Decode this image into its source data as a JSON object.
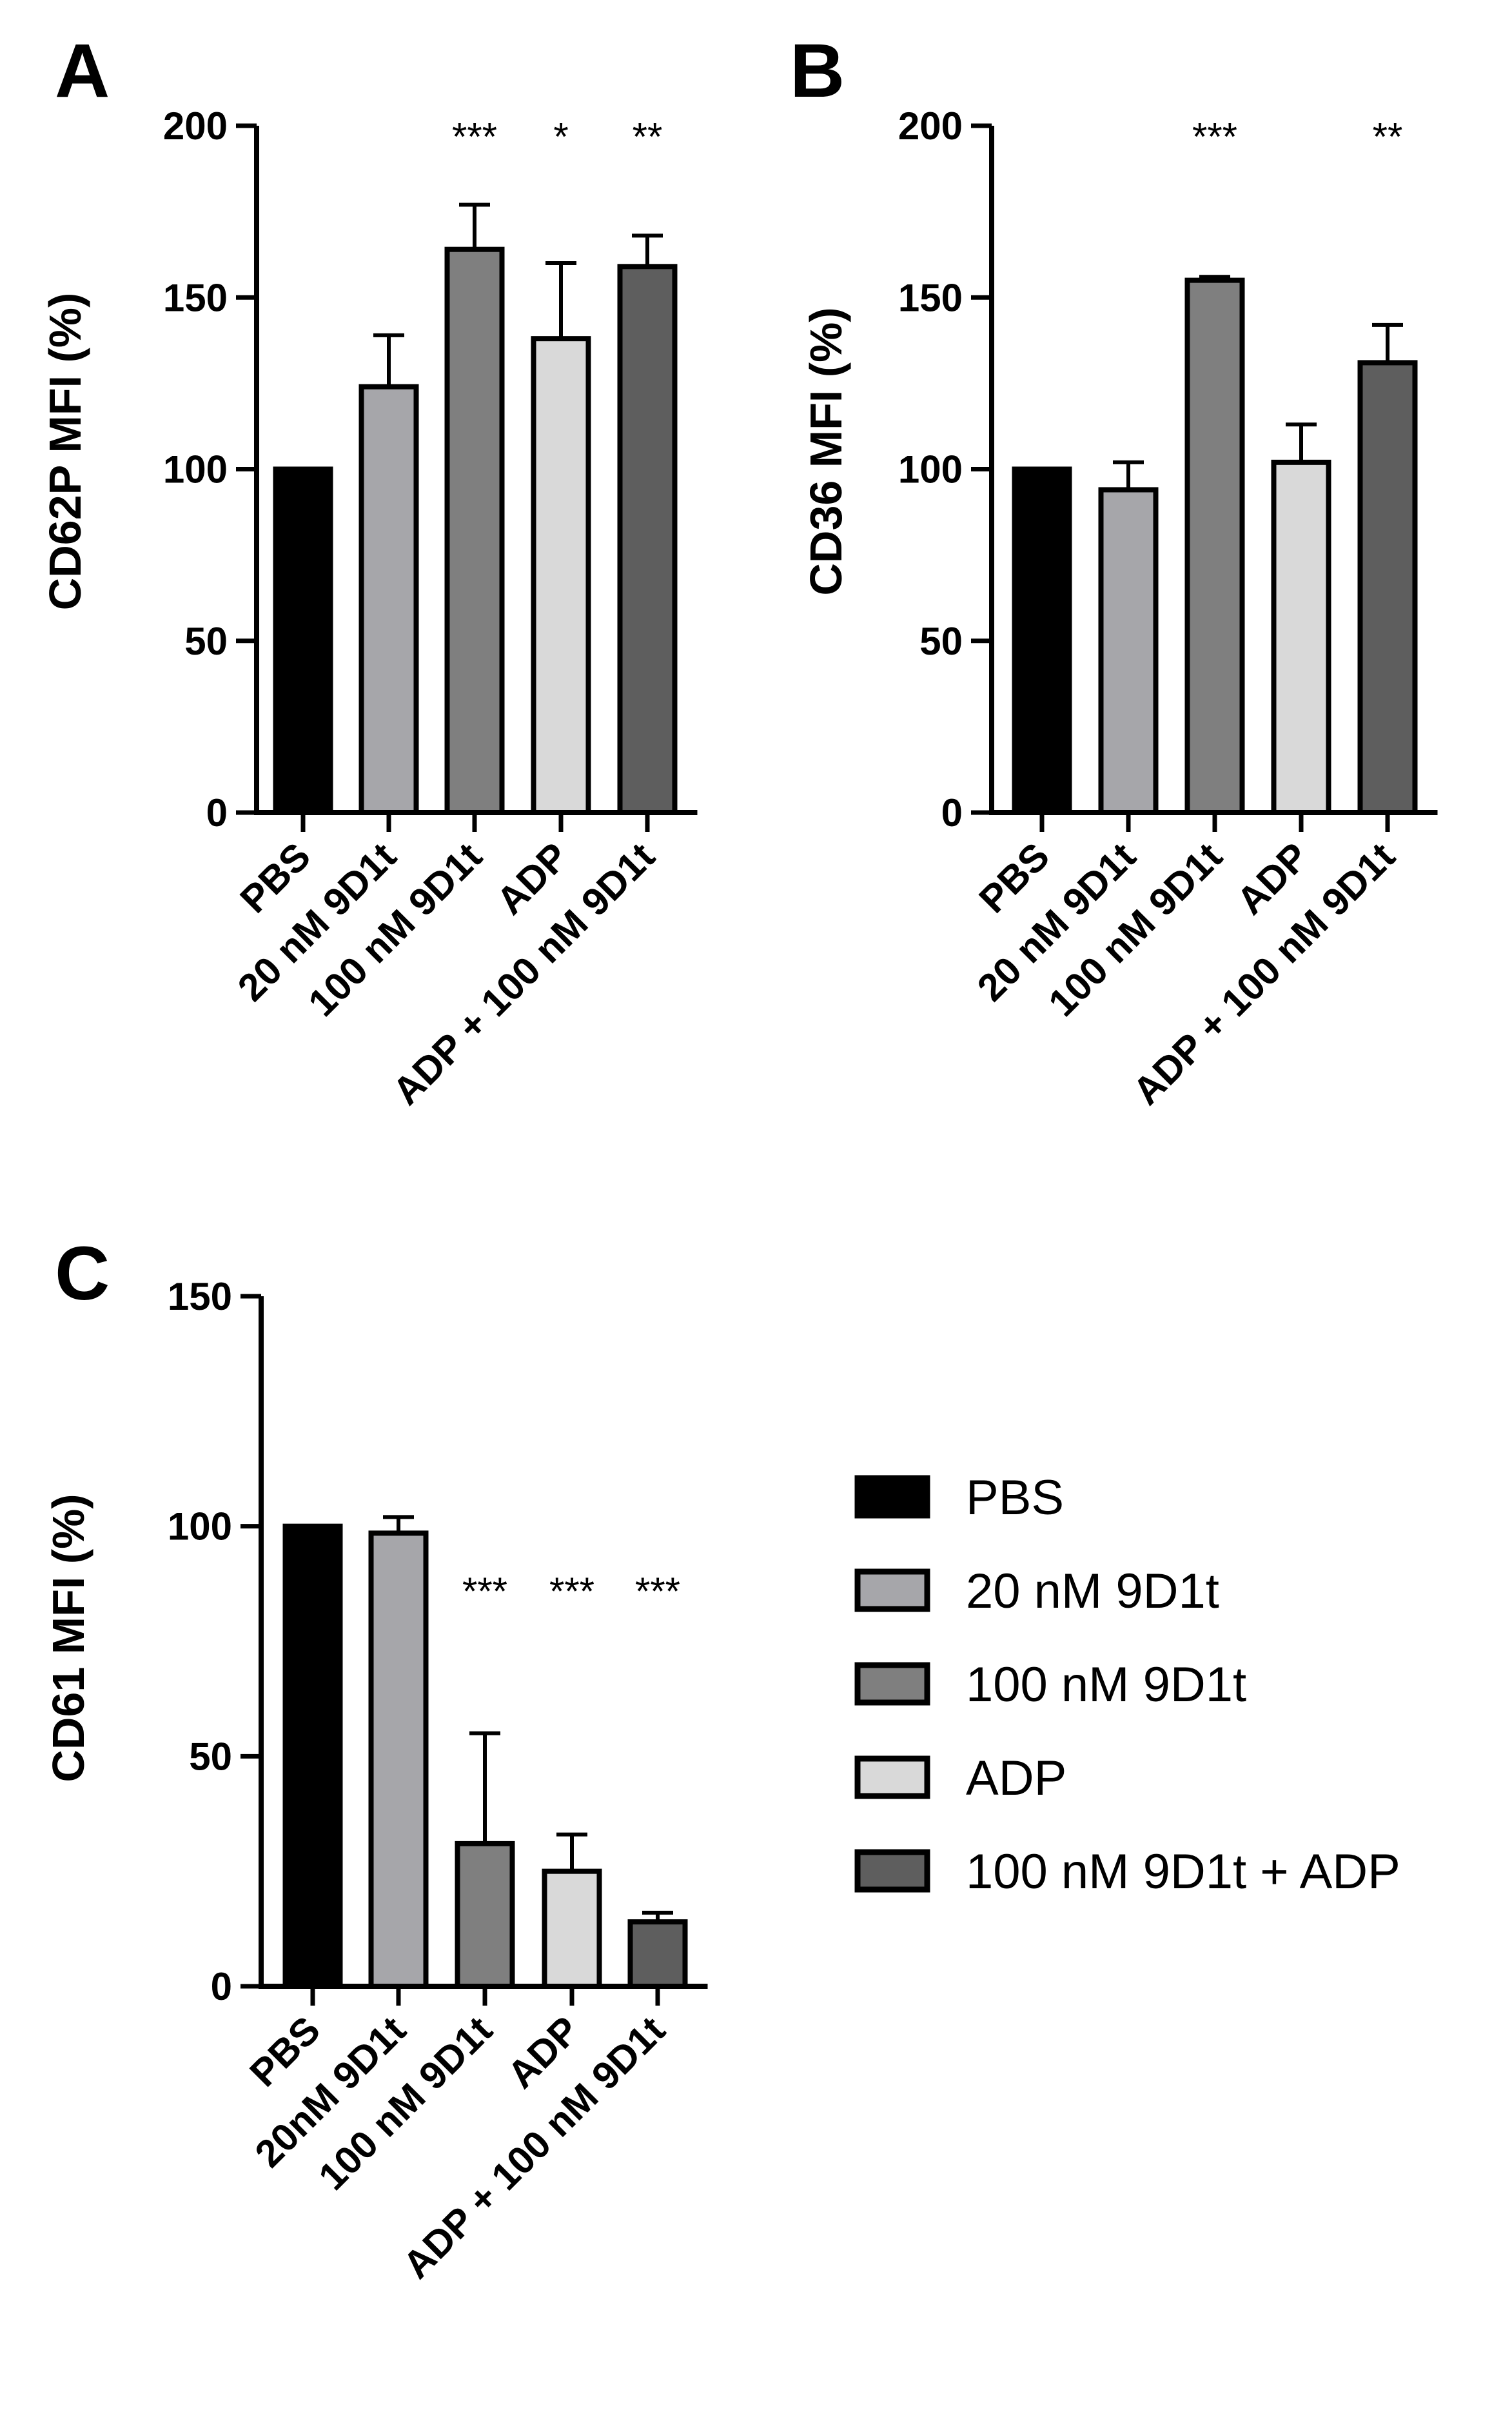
{
  "chart_data": [
    {
      "type": "bar",
      "panel": "A",
      "ylabel": "CD62P MFI (%)",
      "ylim": [
        0,
        200
      ],
      "yticks": [
        0,
        50,
        100,
        150,
        200
      ],
      "categories": [
        "PBS",
        "20 nM 9D1t",
        "100 nM 9D1t",
        "ADP",
        "ADP + 100 nM 9D1t"
      ],
      "values": [
        100,
        124,
        164,
        138,
        159
      ],
      "errors": [
        0,
        15,
        13,
        22,
        9
      ],
      "significance": [
        "",
        "",
        "***",
        "*",
        "**"
      ]
    },
    {
      "type": "bar",
      "panel": "B",
      "ylabel": "CD36 MFI (%)",
      "ylim": [
        0,
        200
      ],
      "yticks": [
        0,
        50,
        100,
        150,
        200
      ],
      "categories": [
        "PBS",
        "20 nM 9D1t",
        "100 nM 9D1t",
        "ADP",
        "ADP + 100 nM 9D1t"
      ],
      "values": [
        100,
        94,
        155,
        102,
        131
      ],
      "errors": [
        0,
        8,
        1,
        11,
        11
      ],
      "significance": [
        "",
        "",
        "***",
        "",
        "**"
      ]
    },
    {
      "type": "bar",
      "panel": "C",
      "ylabel": "CD61 MFI (%)",
      "ylim": [
        0,
        150
      ],
      "yticks": [
        0,
        50,
        100,
        150
      ],
      "categories": [
        "PBS",
        "20nM 9D1t",
        "100 nM 9D1t",
        "ADP",
        "ADP + 100 nM 9D1t"
      ],
      "values": [
        100,
        98.5,
        31,
        25,
        14
      ],
      "errors": [
        0,
        3.5,
        24,
        8,
        2
      ],
      "significance": [
        "",
        "",
        "***",
        "***",
        "***"
      ]
    }
  ],
  "legend": {
    "placement": "right of panel C",
    "entries": [
      {
        "label": "PBS",
        "color": "#000000"
      },
      {
        "label": "20 nM 9D1t",
        "color": "#a6a6aa"
      },
      {
        "label": "100 nM 9D1t",
        "color": "#7f7f7f"
      },
      {
        "label": "ADP",
        "color": "#d9d9d9"
      },
      {
        "label": "100 nM 9D1t + ADP",
        "color": "#5e5e5e"
      }
    ]
  },
  "colors": {
    "bars": [
      "#000000",
      "#a6a6aa",
      "#7f7f7f",
      "#d9d9d9",
      "#5e5e5e"
    ],
    "outline": "#000000"
  }
}
